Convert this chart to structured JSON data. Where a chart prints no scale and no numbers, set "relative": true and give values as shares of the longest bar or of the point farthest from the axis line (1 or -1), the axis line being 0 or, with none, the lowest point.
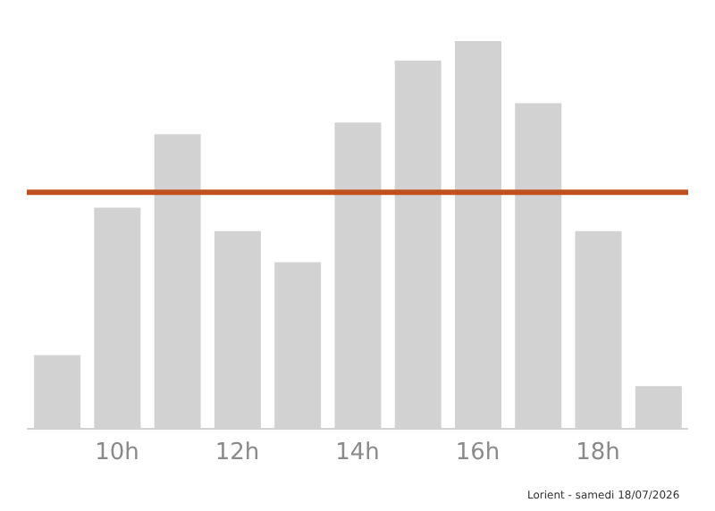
{
  "chart_data": {
    "type": "bar",
    "relative": true,
    "categories": [
      null,
      "10h",
      null,
      "12h",
      null,
      "14h",
      null,
      "16h",
      null,
      "18h",
      null
    ],
    "values": [
      0.19,
      0.57,
      0.76,
      0.51,
      0.43,
      0.79,
      0.95,
      1,
      0.84,
      0.51,
      0.11
    ],
    "color": "#d3d2d3",
    "ref_lines": [
      {
        "axis": "y",
        "value": 0.61,
        "color": "#c0501c"
      }
    ],
    "annotations": [
      "Lorient - samedi 18/07/2026"
    ],
    "grid": false,
    "legend": false
  }
}
